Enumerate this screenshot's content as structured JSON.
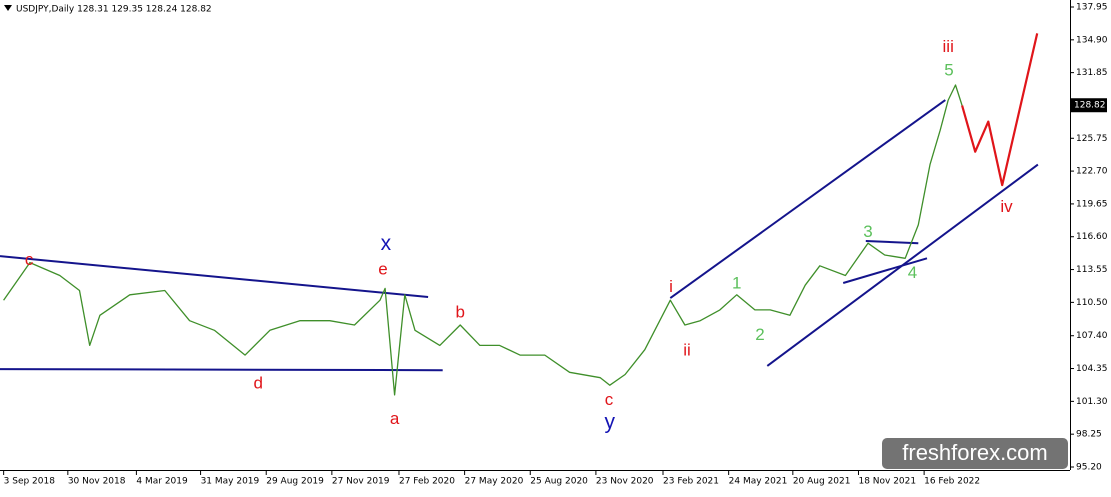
{
  "chart_data": {
    "type": "line",
    "title": "USDJPY,Daily  128.31 129.35 128.24 128.82",
    "xlim": [
      "2018-08-29",
      "2022-09-04"
    ],
    "ylim": [
      95.2,
      137.95
    ],
    "yticks": [
      137.95,
      {
        "value": 134.9,
        "label": "134.90"
      },
      131.85,
      125.75,
      {
        "value": 122.7,
        "label": "122.70"
      },
      119.65,
      {
        "value": 116.6,
        "label": "116.60"
      },
      113.55,
      {
        "value": 110.5,
        "label": "110.50"
      },
      {
        "value": 107.4,
        "label": "107.40"
      },
      104.35,
      {
        "value": 101.3,
        "label": "101.30"
      },
      98.25,
      {
        "value": 95.2,
        "label": "95.20"
      }
    ],
    "xticks": [
      {
        "value": "2018-09-03",
        "label": "3 Sep 2018"
      },
      {
        "value": "2018-11-30",
        "label": "30 Nov 2018"
      },
      {
        "value": "2019-03-04",
        "label": "4 Mar 2019"
      },
      {
        "value": "2019-05-31",
        "label": "31 May 2019"
      },
      {
        "value": "2019-08-29",
        "label": "29 Aug 2019"
      },
      {
        "value": "2019-11-27",
        "label": "27 Nov 2019"
      },
      {
        "value": "2020-02-27",
        "label": "27 Feb 2020"
      },
      {
        "value": "2020-05-27",
        "label": "27 May 2020"
      },
      {
        "value": "2020-08-25",
        "label": "25 Aug 2020"
      },
      {
        "value": "2020-11-23",
        "label": "23 Nov 2020"
      },
      {
        "value": "2021-02-23",
        "label": "23 Feb 2021"
      },
      {
        "value": "2021-05-24",
        "label": "24 May 2021"
      },
      {
        "value": "2021-08-20",
        "label": "20 Aug 2021"
      },
      {
        "value": "2021-11-18",
        "label": "18 Nov 2021"
      },
      {
        "value": "2022-02-16",
        "label": "16 Feb 2022"
      }
    ],
    "last_price": 128.82,
    "price": {
      "color": "#3f8f2a",
      "x": [
        "2018-09-03",
        "2018-10-09",
        "2018-11-19",
        "2018-12-16",
        "2018-12-30",
        "2019-01-13",
        "2019-02-23",
        "2019-04-12",
        "2019-05-16",
        "2019-06-19",
        "2019-07-31",
        "2019-09-03",
        "2019-10-14",
        "2019-11-24",
        "2019-12-28",
        "2020-02-01",
        "2020-02-08",
        "2020-02-21",
        "2020-03-06",
        "2020-03-20",
        "2020-04-23",
        "2020-05-21",
        "2020-06-17",
        "2020-07-14",
        "2020-08-11",
        "2020-09-14",
        "2020-10-18",
        "2020-11-29",
        "2020-12-12",
        "2021-01-02",
        "2021-01-29",
        "2021-03-05",
        "2021-03-25",
        "2021-04-15",
        "2021-05-12",
        "2021-06-04",
        "2021-06-29",
        "2021-07-20",
        "2021-08-16",
        "2021-09-06",
        "2021-09-26",
        "2021-10-31",
        "2021-12-01",
        "2021-12-24",
        "2022-01-21",
        "2022-02-08",
        "2022-02-24",
        "2022-03-10",
        "2022-03-21",
        "2022-03-31",
        "2022-04-09"
      ],
      "values": [
        110.7,
        114.2,
        113.0,
        111.6,
        106.5,
        109.3,
        111.2,
        111.6,
        108.8,
        107.9,
        105.6,
        107.9,
        108.8,
        108.8,
        108.4,
        110.7,
        111.8,
        101.9,
        111.2,
        107.9,
        106.5,
        108.4,
        106.5,
        106.5,
        105.6,
        105.6,
        104.0,
        103.5,
        102.8,
        103.8,
        106.1,
        110.7,
        108.4,
        108.8,
        109.8,
        111.2,
        109.8,
        109.8,
        109.3,
        112.1,
        113.9,
        113.0,
        116.0,
        114.9,
        114.6,
        117.7,
        123.3,
        126.5,
        129.3,
        130.7,
        128.8
      ]
    },
    "projection": {
      "color": "#e0151a",
      "x": [
        "2022-04-09",
        "2022-04-27",
        "2022-05-15",
        "2022-06-03",
        "2022-07-21"
      ],
      "values": [
        128.8,
        124.5,
        127.3,
        121.4,
        135.5
      ]
    },
    "trendlines": [
      {
        "color": "#14148c",
        "x": [
          "2018-08-29",
          "2020-04-07"
        ],
        "values": [
          114.8,
          111.0
        ]
      },
      {
        "color": "#14148c",
        "x": [
          "2018-08-29",
          "2020-04-27"
        ],
        "values": [
          104.3,
          104.2
        ]
      },
      {
        "color": "#14148c",
        "x": [
          "2021-03-05",
          "2022-03-17"
        ],
        "values": [
          110.9,
          129.3
        ]
      },
      {
        "color": "#14148c",
        "x": [
          "2021-07-16",
          "2022-07-22"
        ],
        "values": [
          104.6,
          123.3
        ]
      },
      {
        "color": "#14148c",
        "x": [
          "2021-11-28",
          "2022-02-08"
        ],
        "values": [
          116.2,
          116.0
        ]
      },
      {
        "color": "#14148c",
        "x": [
          "2021-10-28",
          "2022-02-20"
        ],
        "values": [
          112.3,
          114.6
        ]
      }
    ],
    "annotations": [
      {
        "text": "c",
        "color": "#e0151a",
        "x": "2018-10-08",
        "y": 114.4
      },
      {
        "text": "d",
        "color": "#e0151a",
        "x": "2019-08-18",
        "y": 102.9
      },
      {
        "text": "x",
        "color": "#1414b4",
        "x": "2020-02-09",
        "y": 115.9
      },
      {
        "text": "e",
        "color": "#e0151a",
        "x": "2020-02-05",
        "y": 113.5
      },
      {
        "text": "a",
        "color": "#e0151a",
        "x": "2020-02-21",
        "y": 99.6
      },
      {
        "text": "b",
        "color": "#e0151a",
        "x": "2020-05-21",
        "y": 109.5
      },
      {
        "text": "c",
        "color": "#e0151a",
        "x": "2020-12-11",
        "y": 101.4
      },
      {
        "text": "y",
        "color": "#1414b4",
        "x": "2020-12-12",
        "y": 99.3
      },
      {
        "text": "i",
        "color": "#e0151a",
        "x": "2021-03-06",
        "y": 111.9
      },
      {
        "text": "ii",
        "color": "#e0151a",
        "x": "2021-03-28",
        "y": 106.0
      },
      {
        "text": "1",
        "color": "#5cc05c",
        "x": "2021-06-04",
        "y": 112.2
      },
      {
        "text": "2",
        "color": "#5cc05c",
        "x": "2021-07-06",
        "y": 107.4
      },
      {
        "text": "3",
        "color": "#5cc05c",
        "x": "2021-12-01",
        "y": 117.0
      },
      {
        "text": "4",
        "color": "#5cc05c",
        "x": "2022-01-31",
        "y": 113.2
      },
      {
        "text": "5",
        "color": "#5cc05c",
        "x": "2022-03-22",
        "y": 132.0
      },
      {
        "text": "iii",
        "color": "#e0151a",
        "x": "2022-03-21",
        "y": 134.2
      },
      {
        "text": "iv",
        "color": "#e0151a",
        "x": "2022-06-09",
        "y": 119.3
      }
    ],
    "watermark": "freshforex.com"
  }
}
